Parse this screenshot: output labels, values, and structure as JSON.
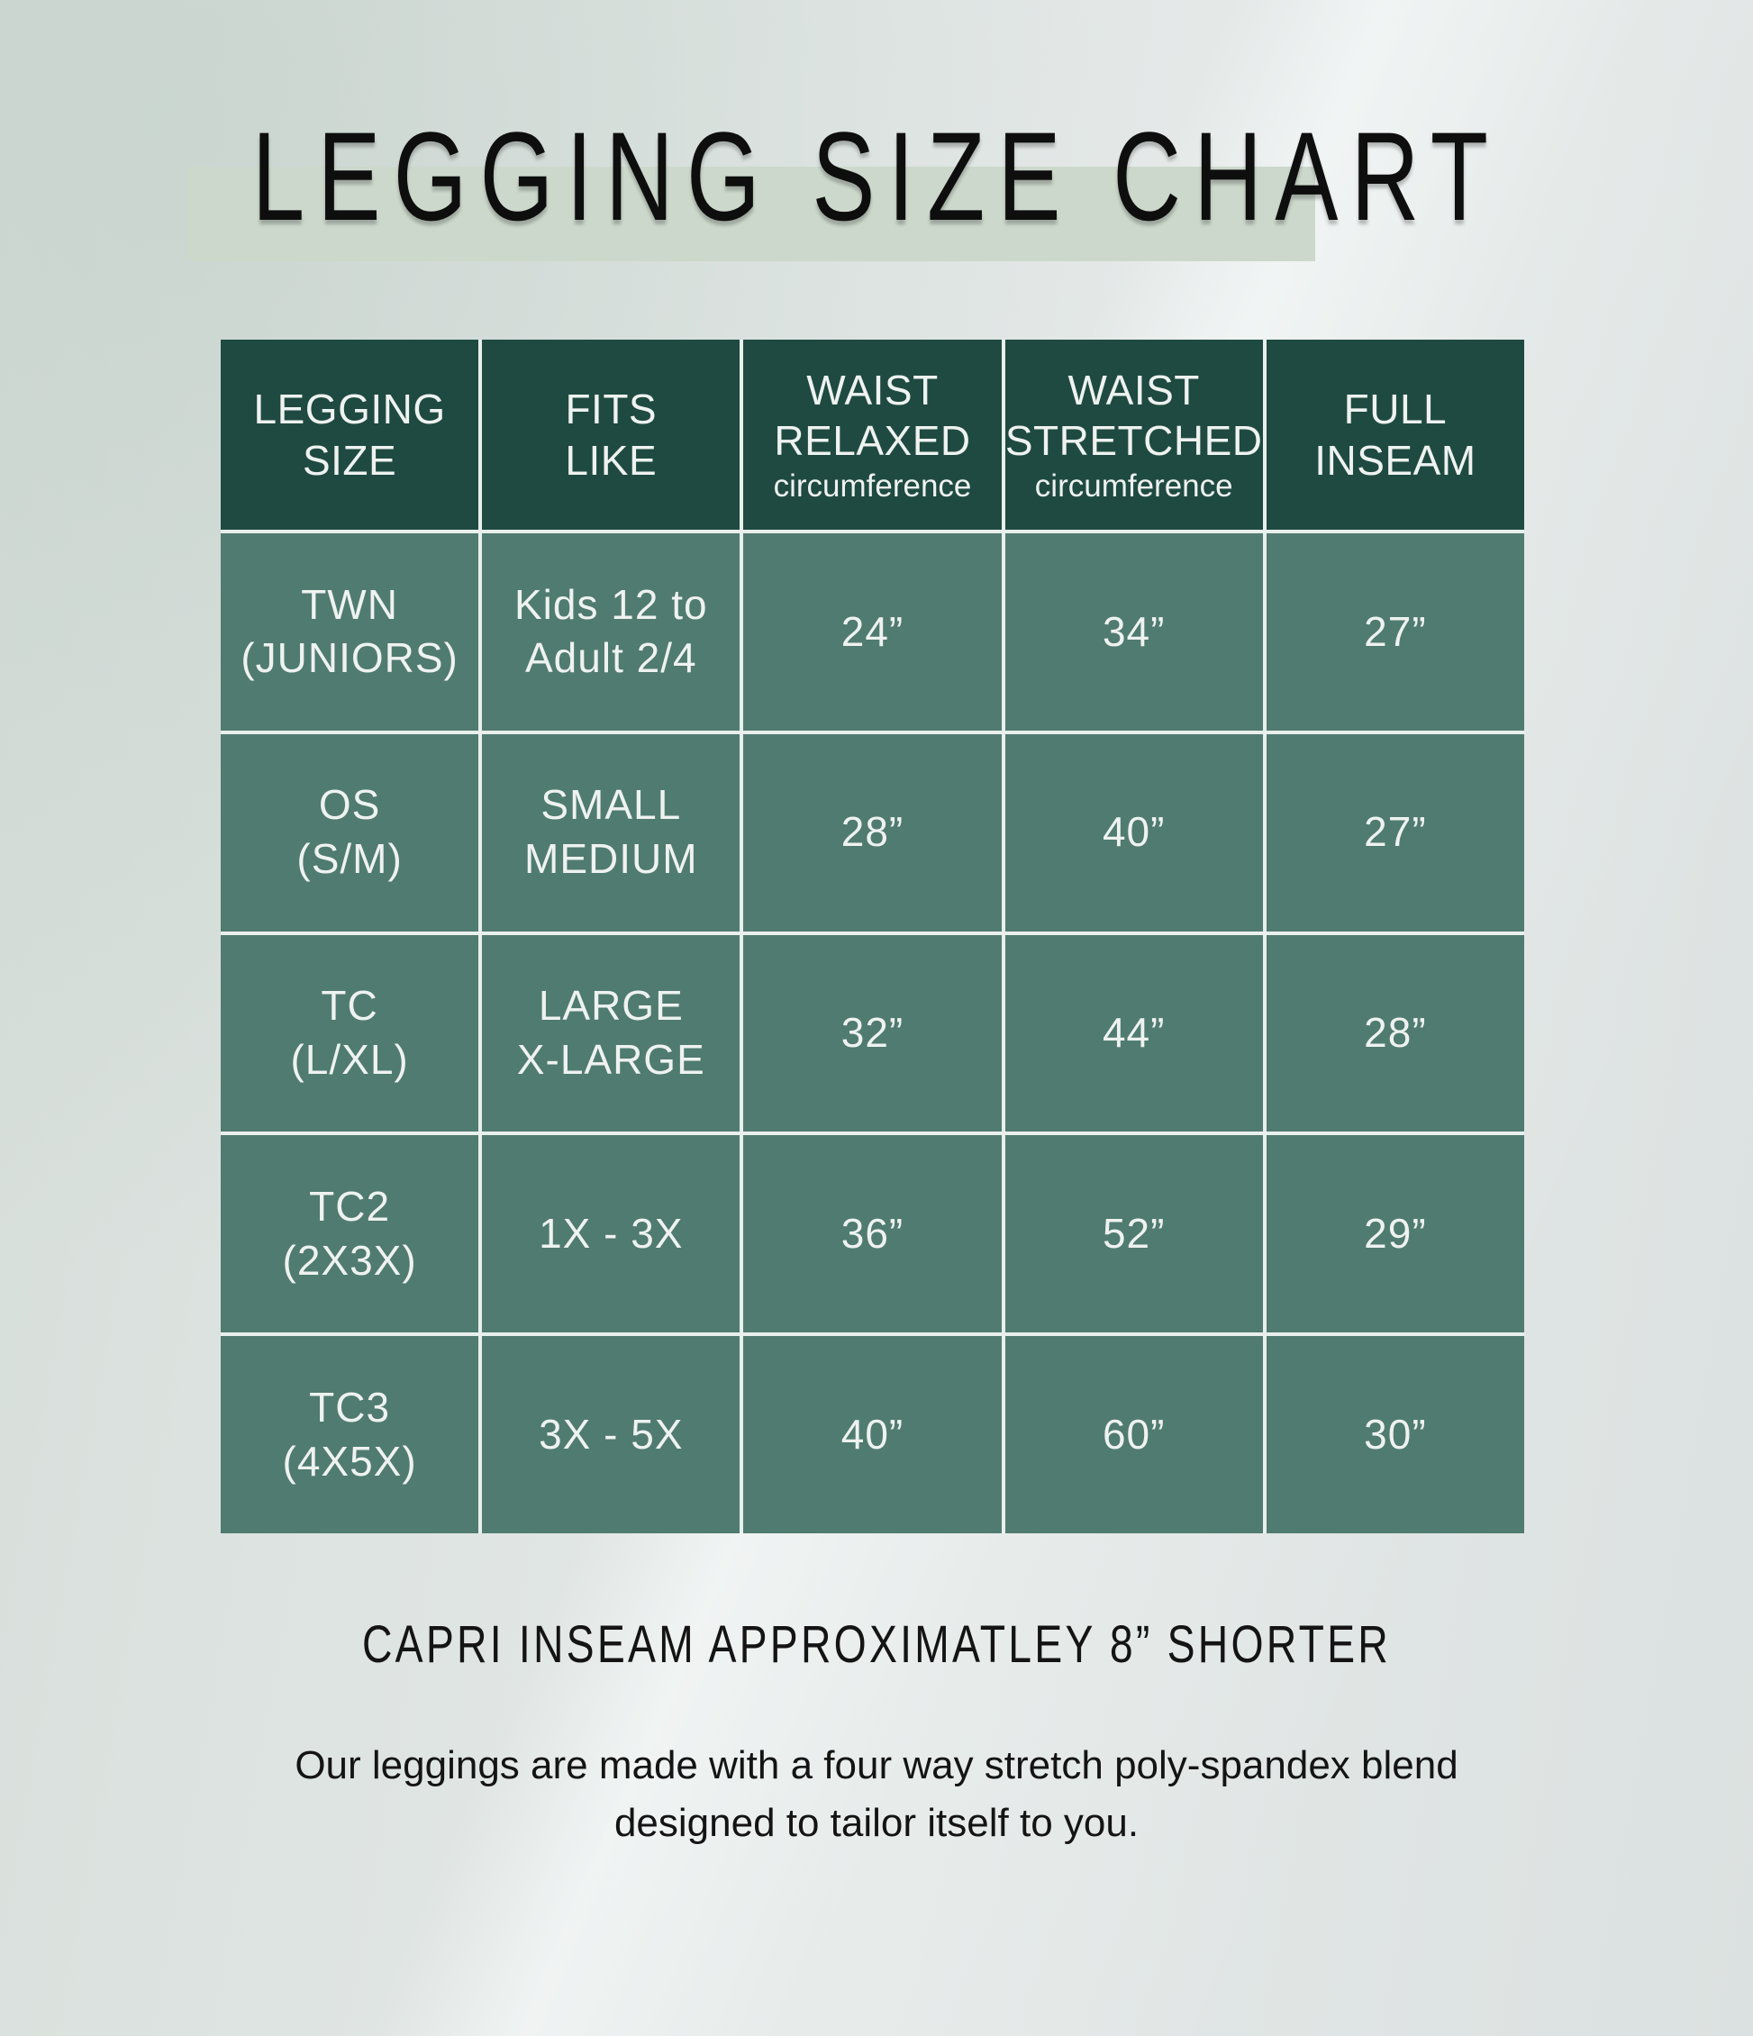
{
  "page": {
    "title": "LEGGING SIZE CHART",
    "capri_note": "CAPRI INSEAM APPROXIMATLEY 8” SHORTER",
    "description": "Our leggings are made with a four way stretch poly-spandex blend\ndesigned to tailor itself to you."
  },
  "colors": {
    "header_green": "#1f4a41",
    "cell_green": "#507b70",
    "gridline": "#e9efec",
    "title_band": "#ccd8cb",
    "page_background": "#dee4e2",
    "cell_text": "#eef2f0",
    "dark_text": "#141414"
  },
  "table": {
    "headers": [
      {
        "label": "LEGGING\nSIZE",
        "sub": ""
      },
      {
        "label": "FITS\nLIKE",
        "sub": ""
      },
      {
        "label": "WAIST\nRELAXED",
        "sub": "circumference"
      },
      {
        "label": "WAIST\nSTRETCHED",
        "sub": "circumference"
      },
      {
        "label": "FULL\nINSEAM",
        "sub": ""
      }
    ],
    "rows": [
      {
        "size": "TWN\n(JUNIORS)",
        "fits": "Kids 12 to\nAdult 2/4",
        "waist_relaxed": "24”",
        "waist_stretched": "34”",
        "full_inseam": "27”"
      },
      {
        "size": "OS\n(S/M)",
        "fits": "SMALL\nMEDIUM",
        "waist_relaxed": "28”",
        "waist_stretched": "40”",
        "full_inseam": "27”"
      },
      {
        "size": "TC\n(L/XL)",
        "fits": "LARGE\nX-LARGE",
        "waist_relaxed": "32”",
        "waist_stretched": "44”",
        "full_inseam": "28”"
      },
      {
        "size": "TC2\n(2X3X)",
        "fits": "1X - 3X",
        "waist_relaxed": "36”",
        "waist_stretched": "52”",
        "full_inseam": "29”"
      },
      {
        "size": "TC3\n(4X5X)",
        "fits": "3X - 5X",
        "waist_relaxed": "40”",
        "waist_stretched": "60”",
        "full_inseam": "30”"
      }
    ]
  },
  "chart_data": {
    "type": "table",
    "title": "LEGGING SIZE CHART",
    "columns": [
      "LEGGING SIZE",
      "FITS LIKE",
      "WAIST RELAXED circumference",
      "WAIST STRETCHED circumference",
      "FULL INSEAM"
    ],
    "rows": [
      [
        "TWN (JUNIORS)",
        "Kids 12 to Adult 2/4",
        "24”",
        "34”",
        "27”"
      ],
      [
        "OS (S/M)",
        "SMALL MEDIUM",
        "28”",
        "40”",
        "27”"
      ],
      [
        "TC (L/XL)",
        "LARGE X-LARGE",
        "32”",
        "44”",
        "28”"
      ],
      [
        "TC2 (2X3X)",
        "1X - 3X",
        "36”",
        "52”",
        "29”"
      ],
      [
        "TC3 (4X5X)",
        "3X - 5X",
        "40”",
        "60”",
        "30”"
      ]
    ],
    "notes": [
      "CAPRI INSEAM APPROXIMATLEY 8” SHORTER",
      "Our leggings are made with a four way stretch poly-spandex blend designed to tailor itself to you."
    ]
  }
}
